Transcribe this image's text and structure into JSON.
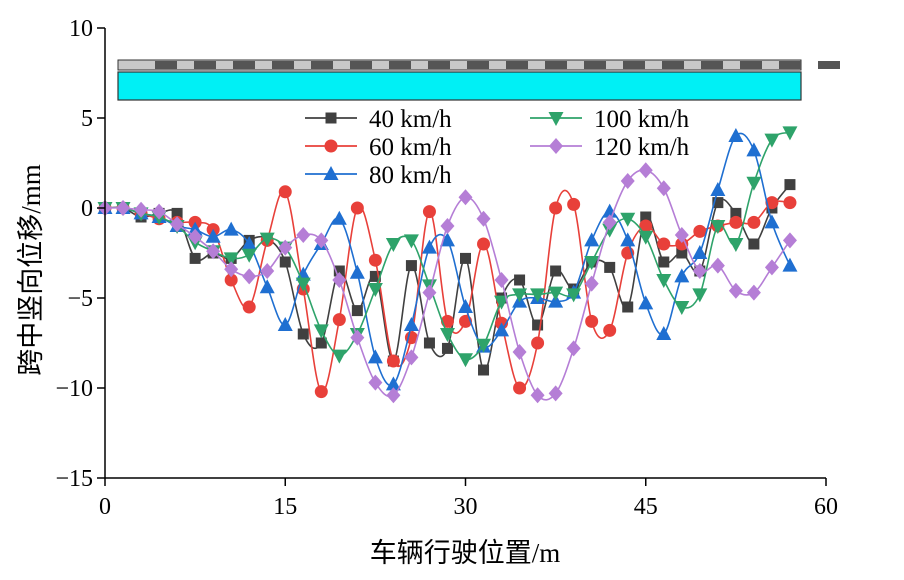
{
  "chart_data": {
    "type": "line",
    "xlabel": "车辆行驶位置/m",
    "ylabel": "跨中竖向位移/mm",
    "xlim": [
      0,
      60
    ],
    "ylim": [
      -15,
      10
    ],
    "xticks": [
      "0",
      "15",
      "30",
      "45",
      "60"
    ],
    "yticks": [
      "10",
      "5",
      "0",
      "−5",
      "−10",
      "−15"
    ],
    "grid": false,
    "legend_position": "upper-middle, two columns",
    "inset": "bridge deck schematic (grey track over cyan girder)",
    "series": [
      {
        "name": "40 km/h",
        "color": "#404040",
        "marker": "square",
        "x": [
          0,
          1.5,
          3,
          4.5,
          6,
          7.5,
          9,
          10.5,
          12,
          13.5,
          15,
          16.5,
          18,
          19.5,
          21,
          22.5,
          24,
          25.5,
          27,
          28.5,
          30,
          31.5,
          33,
          34.5,
          36,
          37.5,
          39,
          40.5,
          42,
          43.5,
          45,
          46.5,
          48,
          49.5,
          51,
          52.5,
          54,
          55.5,
          57
        ],
        "y": [
          0,
          0,
          -0.5,
          -0.3,
          -0.3,
          -2.8,
          -2.5,
          -2.8,
          -1.8,
          -1.7,
          -3,
          -7,
          -7.5,
          -3.5,
          -5.7,
          -3.8,
          -8.5,
          -3.2,
          -7.5,
          -7.8,
          -2.8,
          -9,
          -5,
          -4,
          -6.5,
          -3.5,
          -4.5,
          -3,
          -3.3,
          -5.5,
          -0.5,
          -3,
          -2.5,
          -3.5,
          0.3,
          -0.3,
          -2,
          0,
          1.3
        ]
      },
      {
        "name": "60 km/h",
        "color": "#e8403a",
        "marker": "circle",
        "x": [
          0,
          1.5,
          3,
          4.5,
          6,
          7.5,
          9,
          10.5,
          12,
          13.5,
          15,
          16.5,
          18,
          19.5,
          21,
          22.5,
          24,
          25.5,
          27,
          28.5,
          30,
          31.5,
          33,
          34.5,
          36,
          37.5,
          39,
          40.5,
          42,
          43.5,
          45,
          46.5,
          48,
          49.5,
          51,
          52.5,
          54,
          55.5,
          57
        ],
        "y": [
          0,
          0,
          -0.3,
          -0.6,
          -0.8,
          -0.8,
          -1.2,
          -4,
          -5.5,
          -1.8,
          0.9,
          -4.5,
          -10.2,
          -6.2,
          0,
          -2.9,
          -8.5,
          -7.2,
          -0.2,
          -6.3,
          -6.3,
          -2,
          -6.4,
          -10,
          -7.5,
          0,
          0.2,
          -6.3,
          -6.8,
          -2.5,
          -1,
          -2,
          -2,
          -1.3,
          -1,
          -0.8,
          -0.8,
          0.3,
          0.3
        ]
      },
      {
        "name": "80 km/h",
        "color": "#1f6fd1",
        "marker": "triangle-up",
        "x": [
          0,
          1.5,
          3,
          4.5,
          6,
          7.5,
          9,
          10.5,
          12,
          13.5,
          15,
          16.5,
          18,
          19.5,
          21,
          22.5,
          24,
          25.5,
          27,
          28.5,
          30,
          31.5,
          33,
          34.5,
          36,
          37.5,
          39,
          40.5,
          42,
          43.5,
          45,
          46.5,
          48,
          49.5,
          51,
          52.5,
          54,
          55.5,
          57
        ],
        "y": [
          0,
          0,
          -0.3,
          -0.5,
          -1,
          -1.2,
          -1.6,
          -1.2,
          -2,
          -4.4,
          -6.5,
          -3.7,
          -2,
          -0.6,
          -3.6,
          -8.3,
          -9.8,
          -6.5,
          -2.2,
          -1.8,
          -5.5,
          -7.7,
          -6.8,
          -5.2,
          -5,
          -5.2,
          -4.7,
          -1.8,
          -0.2,
          -1.8,
          -5.3,
          -7,
          -3.8,
          -2.5,
          1,
          4,
          3.2,
          -0.8,
          -3.2
        ]
      },
      {
        "name": "100 km/h",
        "color": "#2ea36a",
        "marker": "triangle-down",
        "x": [
          0,
          1.5,
          3,
          4.5,
          6,
          7.5,
          9,
          10.5,
          12,
          13.5,
          15,
          16.5,
          18,
          19.5,
          21,
          22.5,
          24,
          25.5,
          27,
          28.5,
          30,
          31.5,
          33,
          34.5,
          36,
          37.5,
          39,
          40.5,
          42,
          43.5,
          45,
          46.5,
          48,
          49.5,
          51,
          52.5,
          54,
          55.5,
          57
        ],
        "y": [
          0,
          0,
          -0.3,
          -0.5,
          -1,
          -1.9,
          -2.4,
          -2.8,
          -2.6,
          -1.7,
          -2.2,
          -4.2,
          -6.8,
          -8.2,
          -7,
          -4.5,
          -2,
          -1.8,
          -4.3,
          -7,
          -8.4,
          -7.6,
          -5.2,
          -4.8,
          -4.8,
          -4.7,
          -4.8,
          -3,
          -1.2,
          -0.6,
          -1.6,
          -4,
          -5.5,
          -4.8,
          -1,
          -2,
          1.4,
          3.8,
          4.2
        ]
      },
      {
        "name": "120 km/h",
        "color": "#b57ed6",
        "marker": "diamond",
        "x": [
          0,
          1.5,
          3,
          4.5,
          6,
          7.5,
          9,
          10.5,
          12,
          13.5,
          15,
          16.5,
          18,
          19.5,
          21,
          22.5,
          24,
          25.5,
          27,
          28.5,
          30,
          31.5,
          33,
          34.5,
          36,
          37.5,
          39,
          40.5,
          42,
          43.5,
          45,
          46.5,
          48,
          49.5,
          51,
          52.5,
          54,
          55.5,
          57
        ],
        "y": [
          0,
          0,
          -0.1,
          -0.2,
          -0.9,
          -1.6,
          -2.4,
          -3.4,
          -3.8,
          -3.5,
          -2.2,
          -1.5,
          -1.8,
          -4,
          -7.2,
          -9.7,
          -10.4,
          -8.3,
          -4.7,
          -1,
          0.6,
          -0.6,
          -4,
          -8,
          -10.4,
          -10.3,
          -7.8,
          -4.2,
          -0.8,
          1.5,
          2.1,
          1.1,
          -1.5,
          -3.5,
          -3.2,
          -4.6,
          -4.7,
          -3.3,
          -1.8
        ]
      }
    ]
  }
}
